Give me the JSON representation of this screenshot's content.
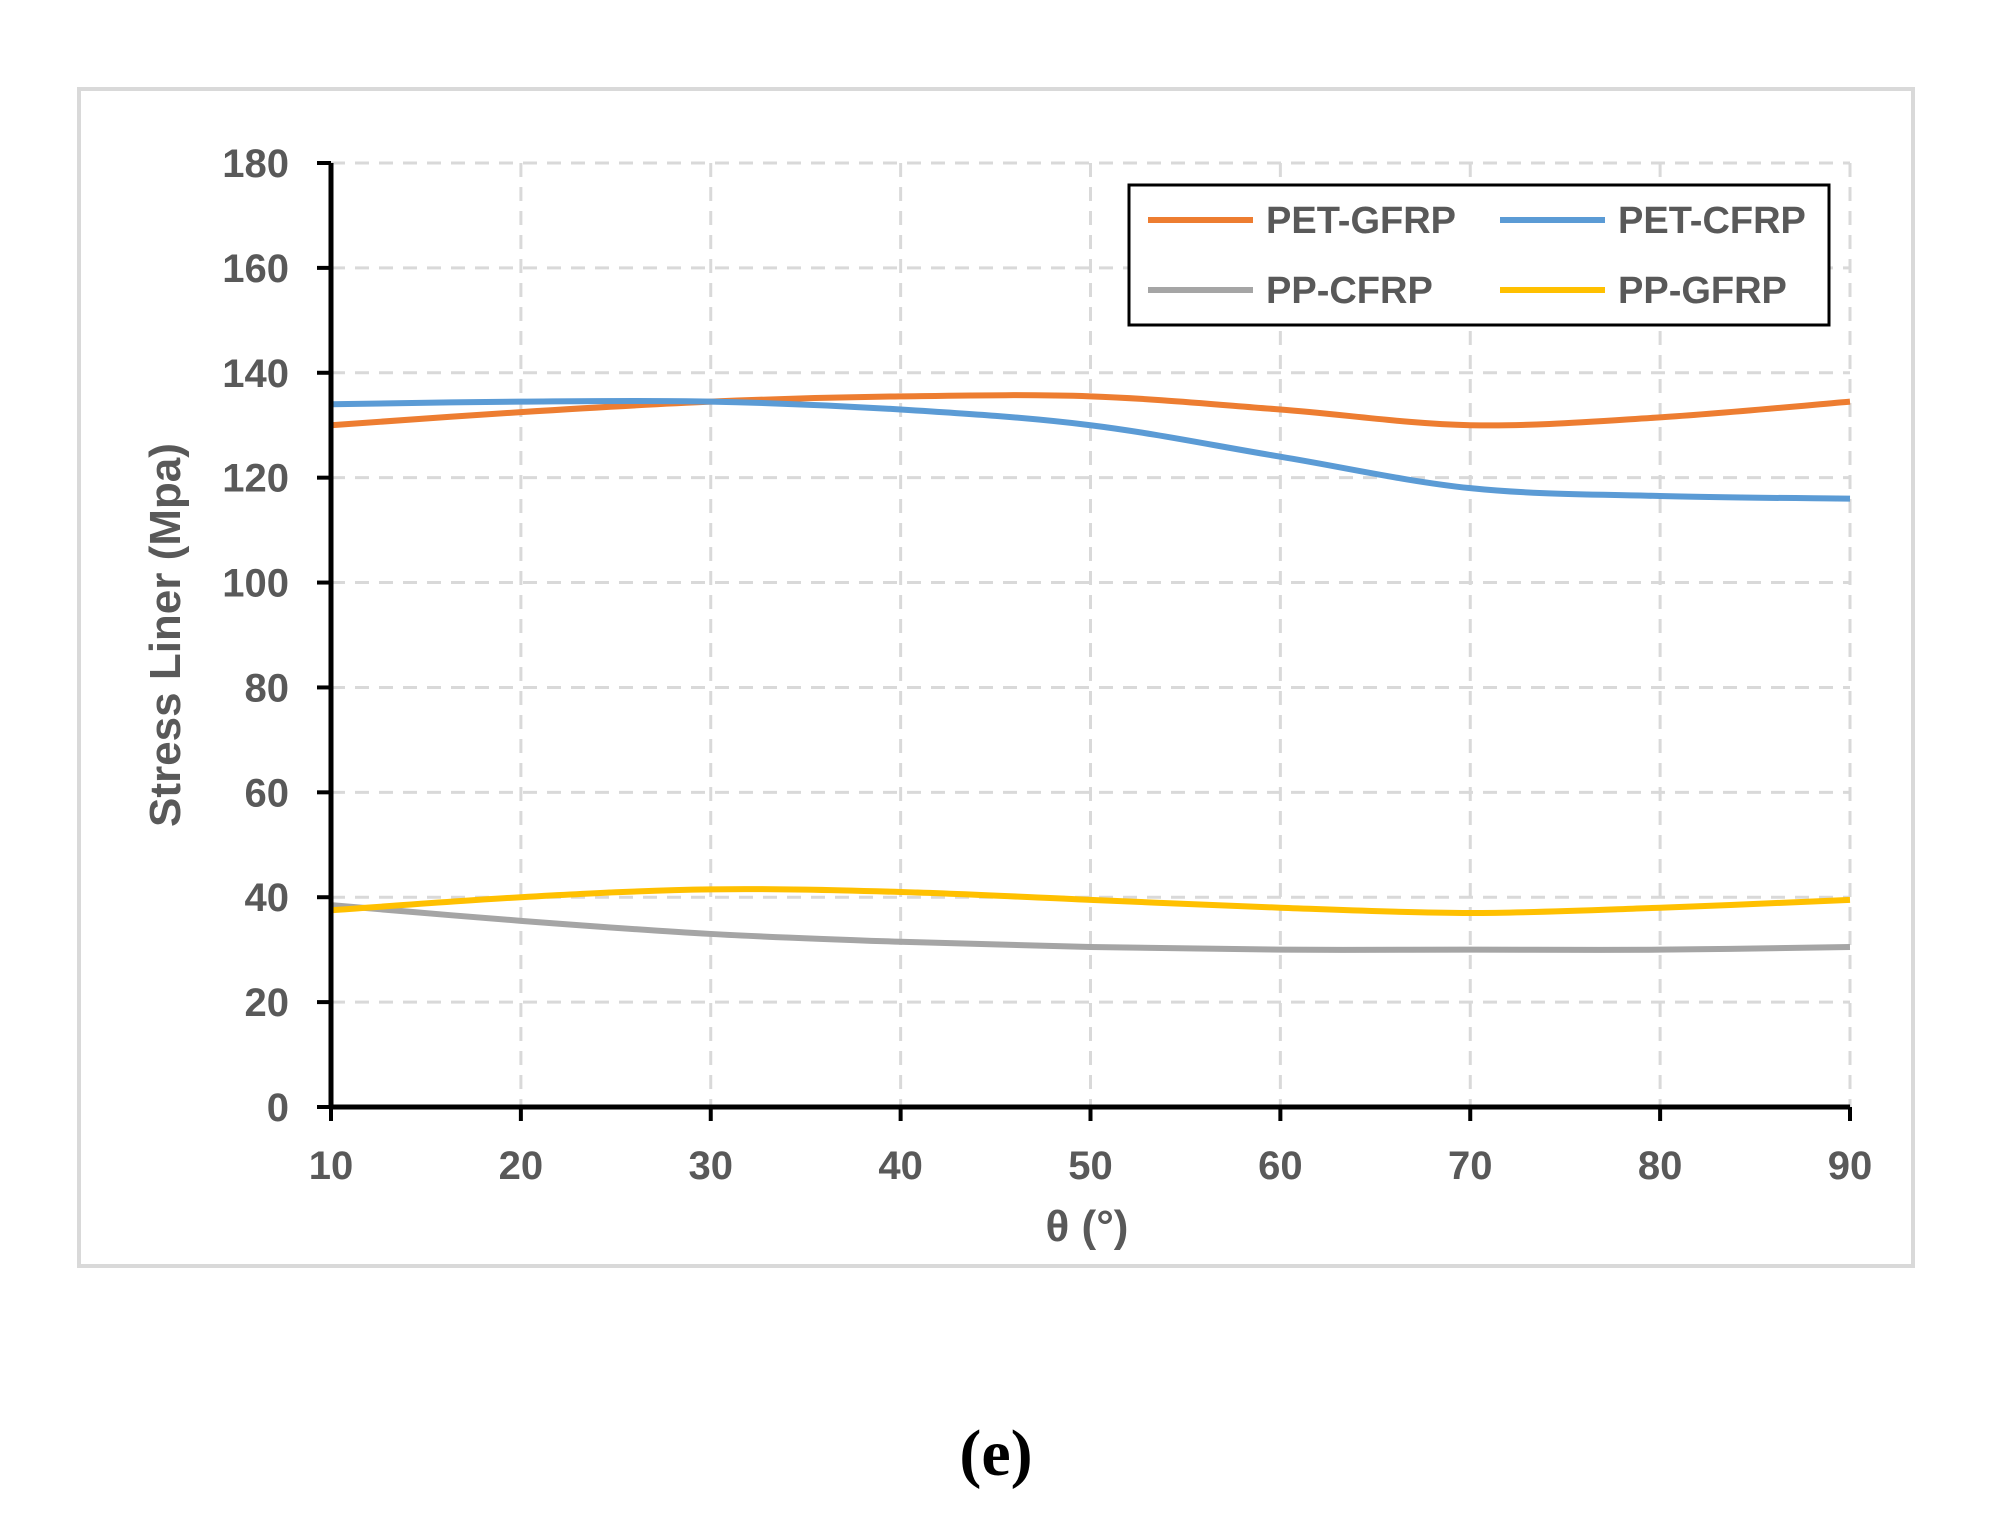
{
  "chart_data": {
    "type": "line",
    "title": "",
    "xlabel": "θ (°)",
    "ylabel": "Stress  Liner (Mpa)",
    "x": [
      10,
      20,
      30,
      40,
      50,
      60,
      70,
      80,
      90
    ],
    "xlim": [
      10,
      90
    ],
    "ylim": [
      0,
      180
    ],
    "xticks": [
      10,
      20,
      30,
      40,
      50,
      60,
      70,
      80,
      90
    ],
    "yticks": [
      0,
      20,
      40,
      60,
      80,
      100,
      120,
      140,
      160,
      180
    ],
    "grid": true,
    "legend_position": "top-right",
    "series": [
      {
        "name": "PET-GFRP",
        "color": "#ED7D31",
        "values": [
          130,
          132.5,
          134.5,
          135.5,
          135.5,
          133,
          130,
          131.5,
          134.5
        ]
      },
      {
        "name": "PET-CFRP",
        "color": "#5B9BD5",
        "values": [
          134,
          134.5,
          134.5,
          133,
          130,
          124,
          118,
          116.5,
          116
        ]
      },
      {
        "name": "PP-CFRP",
        "color": "#A5A5A5",
        "values": [
          38.5,
          35.5,
          33,
          31.5,
          30.5,
          30,
          30,
          30,
          30.5
        ]
      },
      {
        "name": "PP-GFRP",
        "color": "#FFC000",
        "values": [
          37.5,
          40,
          41.5,
          41,
          39.5,
          38,
          37,
          38,
          39.5
        ]
      }
    ]
  },
  "caption": "(e)"
}
